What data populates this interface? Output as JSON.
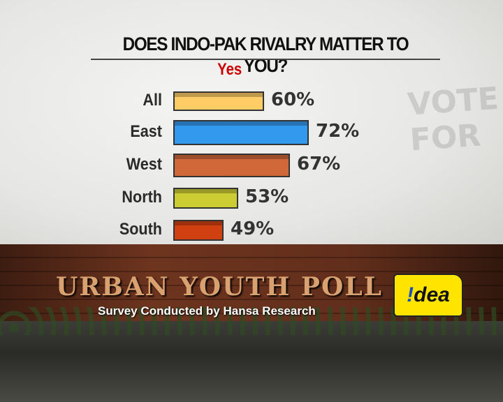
{
  "chart_data": {
    "type": "bar",
    "orientation": "horizontal",
    "title": "DOES INDO-PAK RIVALRY MATTER TO YOU?",
    "series": [
      {
        "name": "Yes",
        "values": [
          60,
          72,
          67,
          53,
          49
        ]
      }
    ],
    "categories": [
      "All",
      "East",
      "West",
      "North",
      "South"
    ],
    "data_labels": [
      "60%",
      "72%",
      "67%",
      "53%",
      "49%"
    ],
    "colors": [
      "#ffcc66",
      "#3399ee",
      "#d0683a",
      "#cccc33",
      "#d04010"
    ],
    "grid": false
  },
  "branding": {
    "poll_name": "URBAN YOUTH POLL",
    "credit": "Survey Conducted by Hansa Research",
    "sponsor_logo": "!dea",
    "watermark": "VOTE FOR"
  }
}
